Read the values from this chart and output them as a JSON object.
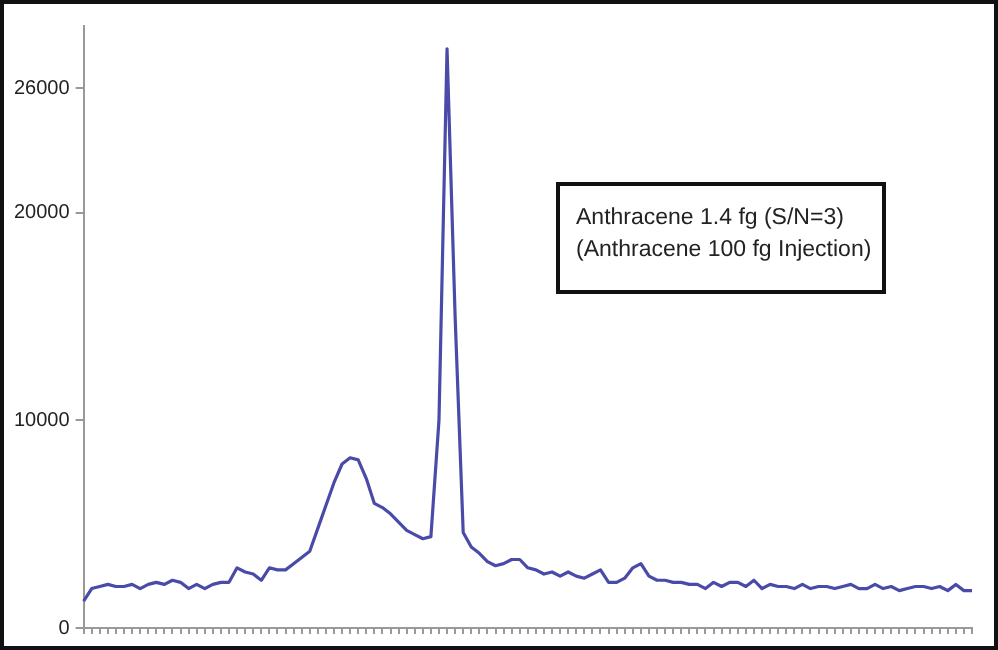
{
  "chart_data": {
    "type": "line",
    "categories": [
      null,
      null,
      null,
      null,
      null,
      null,
      null,
      null,
      null,
      null,
      null,
      null,
      null,
      null,
      null,
      null,
      null,
      null,
      null,
      null,
      null,
      null,
      null,
      null,
      null,
      null,
      null,
      null,
      null,
      null,
      null,
      null,
      null,
      null,
      null,
      null,
      null,
      null,
      null,
      null,
      null,
      null,
      null,
      null,
      null,
      null,
      null,
      null,
      null,
      null,
      null,
      null,
      null,
      null,
      null,
      null,
      null,
      null,
      null,
      null,
      null,
      null,
      null,
      null,
      null,
      null,
      null,
      null,
      null,
      null,
      null,
      null,
      null,
      null,
      null,
      null,
      null,
      null,
      null,
      null,
      null,
      null,
      null,
      null,
      null,
      null,
      null,
      null,
      null,
      null,
      null,
      null,
      null,
      null,
      null,
      null,
      null,
      null,
      null,
      null,
      null,
      null,
      null,
      null,
      null,
      null,
      null,
      null,
      null,
      null,
      null
    ],
    "series": [
      {
        "color": "#4a4aa8",
        "values": [
          1300,
          1900,
          2000,
          2100,
          2000,
          2000,
          2100,
          1900,
          2100,
          2200,
          2100,
          2300,
          2200,
          1900,
          2100,
          1900,
          2100,
          2200,
          2200,
          2900,
          2700,
          2600,
          2300,
          2900,
          2800,
          2800,
          3100,
          3400,
          3700,
          4800,
          5900,
          7000,
          7900,
          8200,
          8100,
          7200,
          6000,
          5800,
          5500,
          5100,
          4700,
          4500,
          4300,
          4400,
          10000,
          27900,
          15000,
          4600,
          3900,
          3600,
          3200,
          3000,
          3100,
          3300,
          3300,
          2900,
          2800,
          2600,
          2700,
          2500,
          2700,
          2500,
          2400,
          2600,
          2800,
          2200,
          2200,
          2400,
          2900,
          3100,
          2500,
          2300,
          2300,
          2200,
          2200,
          2100,
          2100,
          1900,
          2200,
          2000,
          2200,
          2200,
          2000,
          2300,
          1900,
          2100,
          2000,
          2000,
          1900,
          2100,
          1900,
          2000,
          2000,
          1900,
          2000,
          2100,
          1900,
          1900,
          2100,
          1900,
          2000,
          1800,
          1900,
          2000,
          2000,
          1900,
          2000,
          1800,
          2100,
          1800,
          1800
        ]
      }
    ],
    "ylim": [
      0,
      29000
    ],
    "yticks": [
      0,
      10000,
      20000,
      26000
    ],
    "grid": false,
    "legend": false,
    "tick_labels": "y",
    "marker": "none",
    "line_style": "solid",
    "annotations": [
      "Anthracene 1.4 fg (S/N=3)",
      "(Anthracene 100 fg Injection)"
    ]
  }
}
